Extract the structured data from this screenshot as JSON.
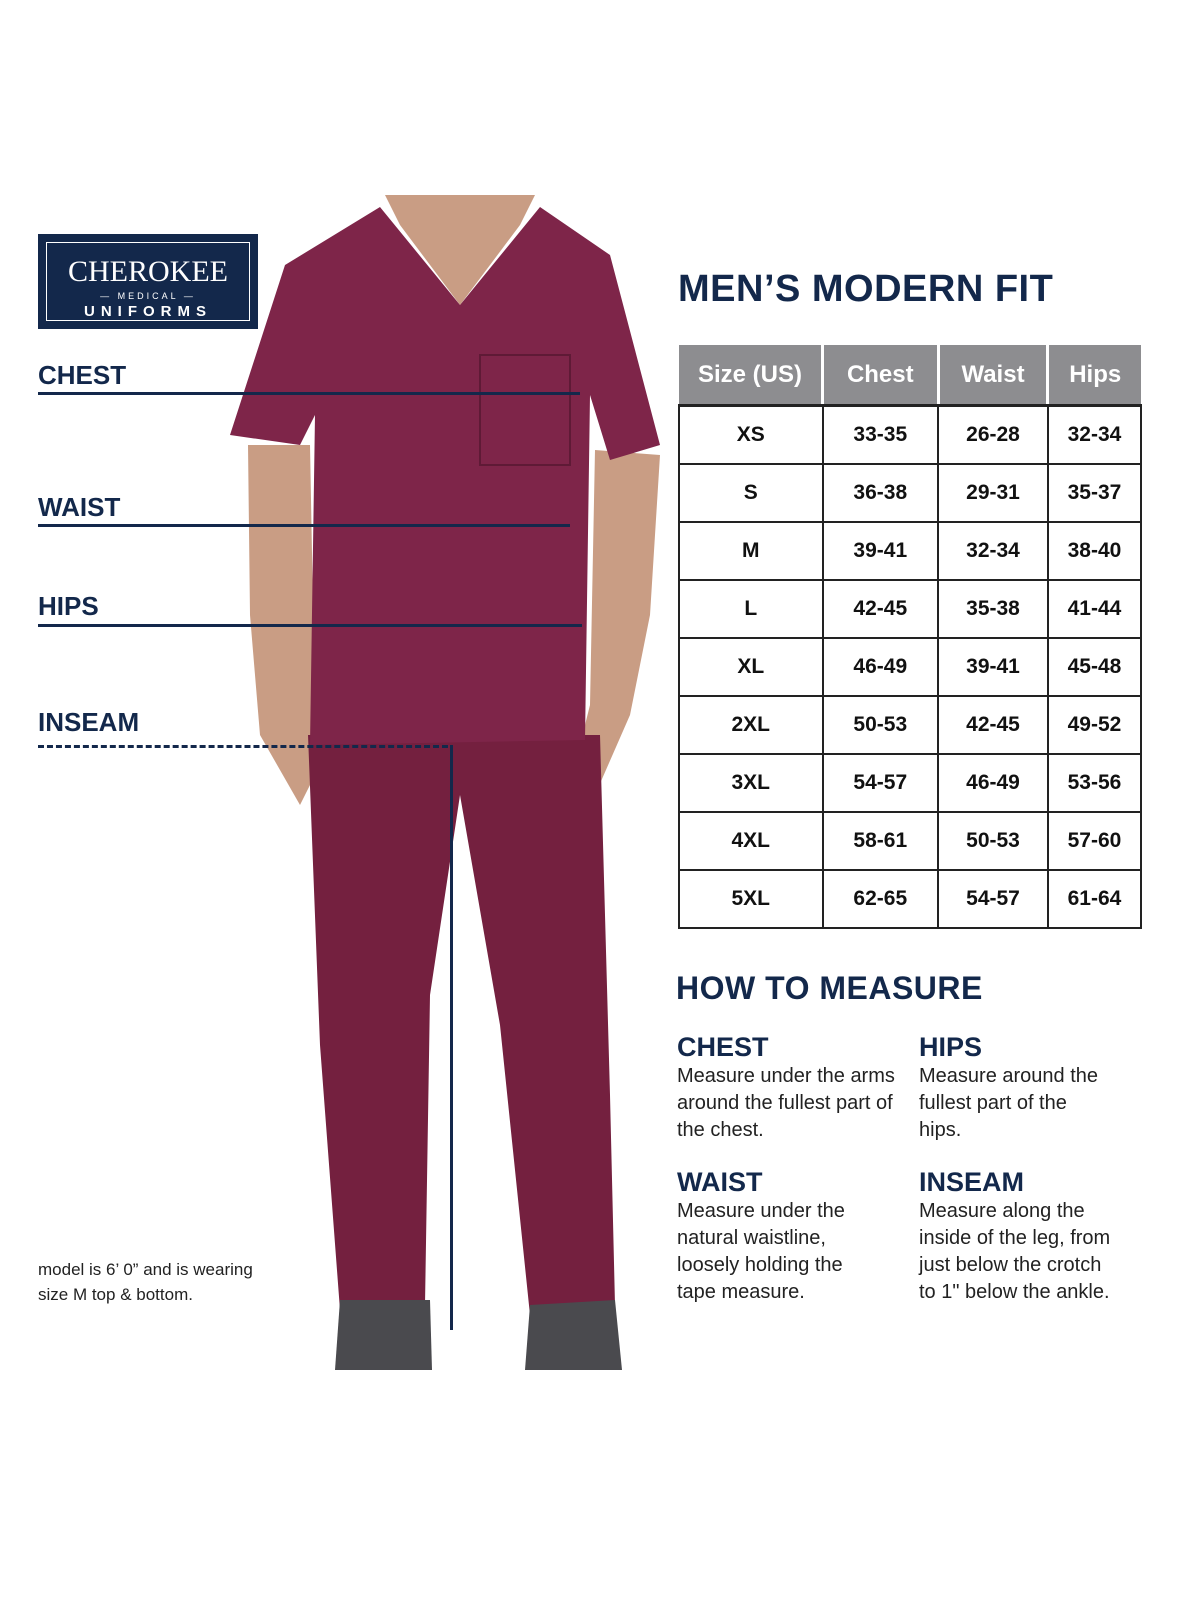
{
  "brand": {
    "name": "CHEROKEE",
    "sub": "MEDICAL",
    "line": "UNIFORMS"
  },
  "labels": {
    "chest": "CHEST",
    "waist": "WAIST",
    "hips": "HIPS",
    "inseam": "INSEAM"
  },
  "title": "MEN’S MODERN FIT",
  "table": {
    "headers": [
      "Size (US)",
      "Chest",
      "Waist",
      "Hips"
    ],
    "rows": [
      [
        "XS",
        "33-35",
        "26-28",
        "32-34"
      ],
      [
        "S",
        "36-38",
        "29-31",
        "35-37"
      ],
      [
        "M",
        "39-41",
        "32-34",
        "38-40"
      ],
      [
        "L",
        "42-45",
        "35-38",
        "41-44"
      ],
      [
        "XL",
        "46-49",
        "39-41",
        "45-48"
      ],
      [
        "2XL",
        "50-53",
        "42-45",
        "49-52"
      ],
      [
        "3XL",
        "54-57",
        "46-49",
        "53-56"
      ],
      [
        "4XL",
        "58-61",
        "50-53",
        "57-60"
      ],
      [
        "5XL",
        "62-65",
        "54-57",
        "61-64"
      ]
    ],
    "header_color": "#8d8d90"
  },
  "how": {
    "title": "HOW TO MEASURE",
    "items": [
      {
        "h": "CHEST",
        "t": "Measure under the arms around the fullest part of the chest."
      },
      {
        "h": "HIPS",
        "t": "Measure around the fullest part of the hips."
      },
      {
        "h": "WAIST",
        "t": "Measure under the natural waistline, loosely holding the tape measure."
      },
      {
        "h": "INSEAM",
        "t": "Measure along the inside of the leg, from just below the crotch to 1\" below the ankle."
      }
    ]
  },
  "note": "model is 6’ 0” and is wearing size M top & bottom.",
  "colors": {
    "navy": "#13284b",
    "scrubs": "#7a2447"
  }
}
